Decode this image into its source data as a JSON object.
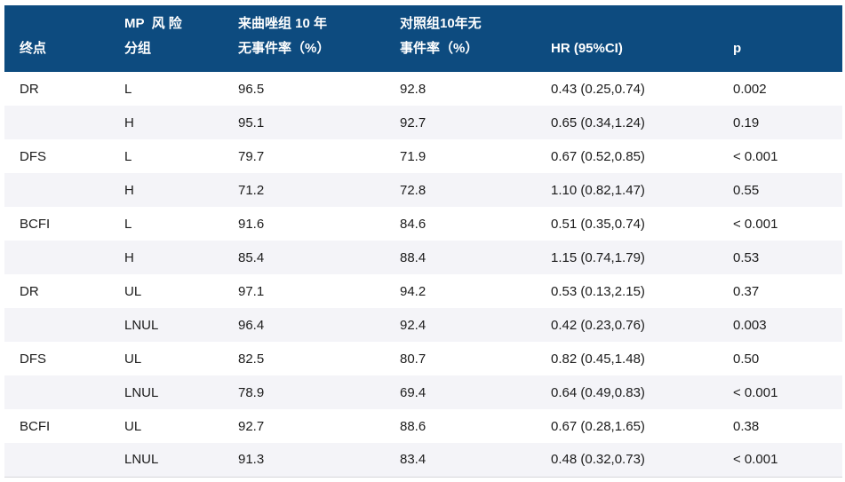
{
  "colors": {
    "header_bg": "#0d4b7f",
    "header_text": "#ffffff",
    "row_stripe": "#f4f4f8",
    "row_plain": "#ffffff",
    "body_text": "#1b1b1b",
    "bottom_border": "#d6d6da"
  },
  "header": {
    "endpoint": "终点",
    "mp_group": {
      "line1": "MP  风 险",
      "line2": "分组"
    },
    "letrozole": {
      "line1": "来曲唑组 10 年",
      "line2": "无事件率（%）"
    },
    "control": {
      "line1": "对照组10年无",
      "line2": "事件率（%）"
    },
    "hr": "HR (95%CI)",
    "p": "p"
  },
  "rows": [
    {
      "endpoint": "DR",
      "group": "L",
      "letrozole": "96.5",
      "control": "92.8",
      "hr": "0.43 (0.25,0.74)",
      "p": "0.002"
    },
    {
      "endpoint": "",
      "group": "H",
      "letrozole": "95.1",
      "control": "92.7",
      "hr": "0.65 (0.34,1.24)",
      "p": "0.19"
    },
    {
      "endpoint": "DFS",
      "group": "L",
      "letrozole": "79.7",
      "control": "71.9",
      "hr": "0.67 (0.52,0.85)",
      "p": "< 0.001"
    },
    {
      "endpoint": "",
      "group": "H",
      "letrozole": "71.2",
      "control": "72.8",
      "hr": "1.10 (0.82,1.47)",
      "p": "0.55"
    },
    {
      "endpoint": "BCFI",
      "group": "L",
      "letrozole": "91.6",
      "control": "84.6",
      "hr": "0.51 (0.35,0.74)",
      "p": "< 0.001"
    },
    {
      "endpoint": "",
      "group": "H",
      "letrozole": "85.4",
      "control": "88.4",
      "hr": "1.15 (0.74,1.79)",
      "p": "0.53"
    },
    {
      "endpoint": "DR",
      "group": "UL",
      "letrozole": "97.1",
      "control": "94.2",
      "hr": "0.53 (0.13,2.15)",
      "p": "0.37"
    },
    {
      "endpoint": "",
      "group": "LNUL",
      "letrozole": "96.4",
      "control": "92.4",
      "hr": "0.42 (0.23,0.76)",
      "p": "0.003"
    },
    {
      "endpoint": "DFS",
      "group": "UL",
      "letrozole": "82.5",
      "control": "80.7",
      "hr": "0.82 (0.45,1.48)",
      "p": "0.50"
    },
    {
      "endpoint": "",
      "group": "LNUL",
      "letrozole": "78.9",
      "control": "69.4",
      "hr": "0.64 (0.49,0.83)",
      "p": "< 0.001"
    },
    {
      "endpoint": "BCFI",
      "group": "UL",
      "letrozole": "92.7",
      "control": "88.6",
      "hr": "0.67 (0.28,1.65)",
      "p": "0.38"
    },
    {
      "endpoint": "",
      "group": "LNUL",
      "letrozole": "91.3",
      "control": "83.4",
      "hr": "0.48 (0.32,0.73)",
      "p": "< 0.001"
    }
  ]
}
